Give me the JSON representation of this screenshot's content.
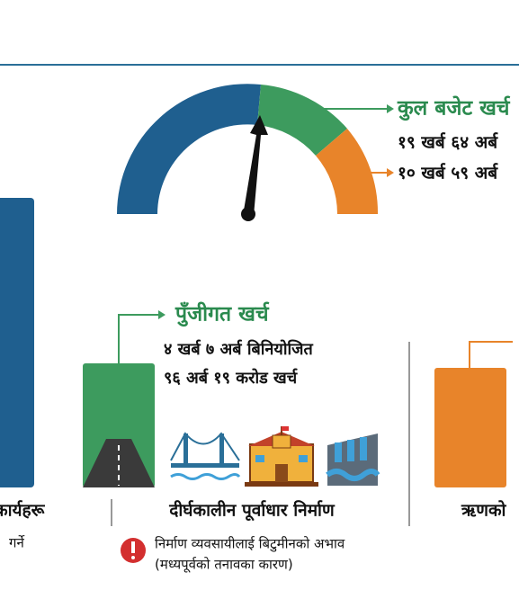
{
  "gauge": {
    "title": "कुल बजेट खर्च",
    "line1": "१९ खर्ब ६४ अर्ब",
    "line2": "१० खर्ब ५९ अर्ब"
  },
  "capital": {
    "title": "पुँजीगत खर्च",
    "line1": "४ खर्ब ७ अर्ब बिनियोजित",
    "line2": "९६ अर्ब १९ करोड खर्च"
  },
  "sections": {
    "left": {
      "label": "कार्यहरू",
      "note": "गर्ने"
    },
    "middle": {
      "label": "दीर्घकालीन पूर्वाधार निर्माण",
      "note1": "निर्माण व्यवसायीलाई बिटुमीनको अभाव",
      "note2": "(मध्यपूर्वको तनावका कारण)"
    },
    "right": {
      "label": "ऋणको"
    }
  }
}
